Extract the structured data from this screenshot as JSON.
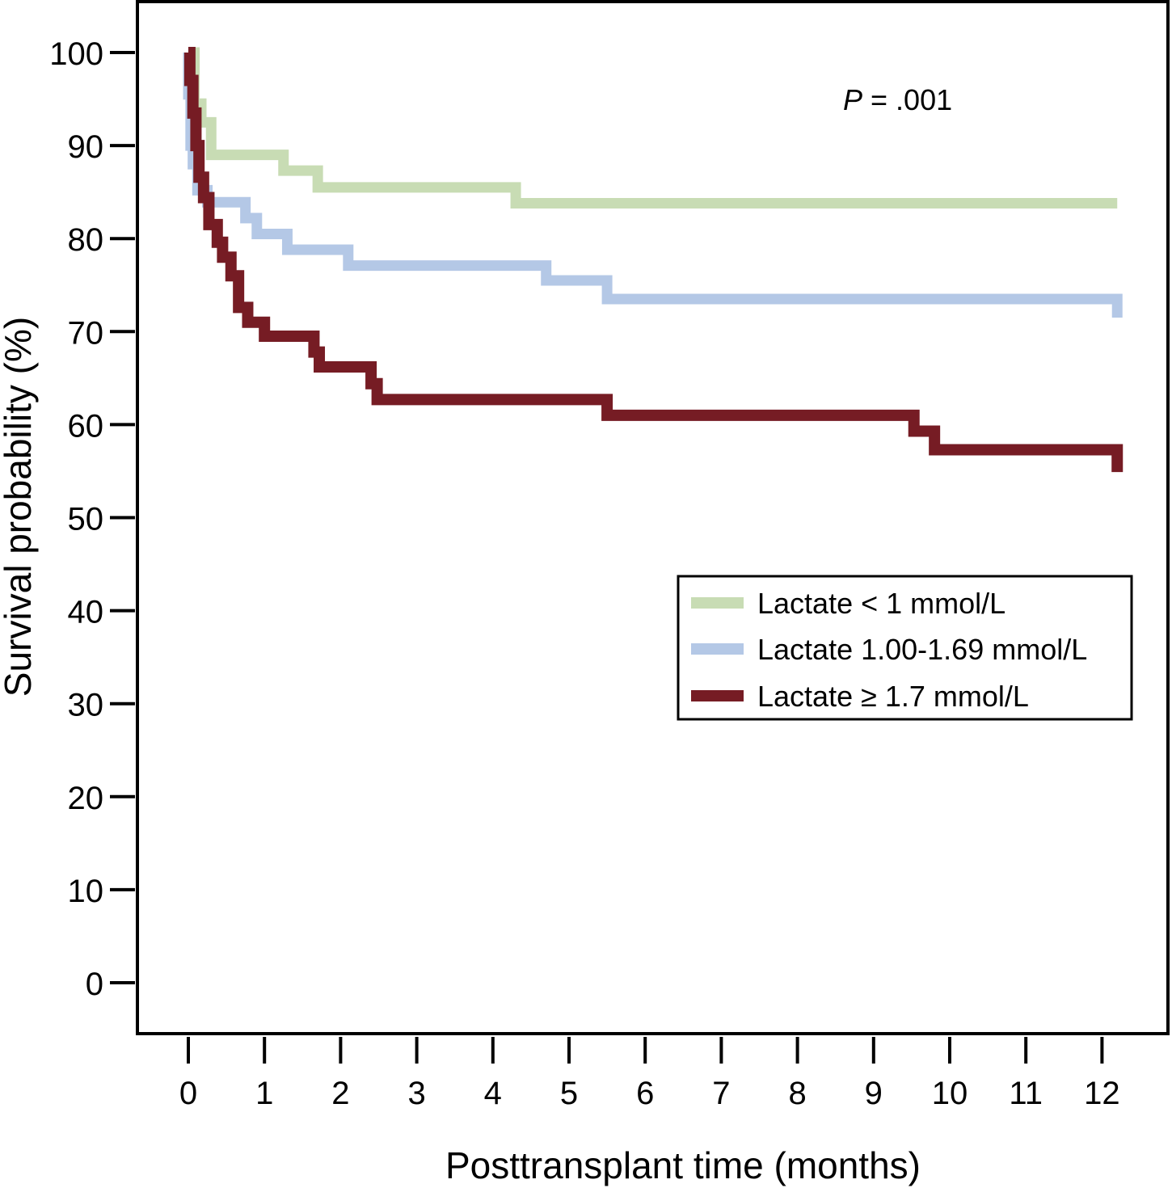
{
  "chart_data": {
    "type": "line",
    "subtype": "kaplan-meier-step",
    "title": "",
    "xlabel": "Posttransplant time (months)",
    "ylabel": "Survival probability (%)",
    "xlim": [
      -0.65,
      12.6
    ],
    "ylim": [
      -5.5,
      105.5
    ],
    "xticks": [
      0,
      1,
      2,
      3,
      4,
      5,
      6,
      7,
      8,
      9,
      10,
      11,
      12
    ],
    "xtick_labels": [
      "0",
      "1",
      "2",
      "3",
      "4",
      "5",
      "6",
      "7",
      "8",
      "9",
      "10",
      "11",
      "12"
    ],
    "yticks": [
      0,
      10,
      20,
      30,
      40,
      50,
      60,
      70,
      80,
      90,
      100
    ],
    "ytick_labels": [
      "0",
      "10",
      "20",
      "30",
      "40",
      "50",
      "60",
      "70",
      "80",
      "90",
      "100"
    ],
    "grid": false,
    "legend_position": "center-right",
    "annotation": {
      "italic": "P",
      "rest": " = .001"
    },
    "series": [
      {
        "name": "Lactate < 1 mmol/L",
        "color": "#c8dcb4",
        "x": [
          0.0,
          0.08,
          0.17,
          0.3,
          1.25,
          1.7,
          4.3,
          12.2
        ],
        "y": [
          100,
          94.5,
          92.5,
          89.0,
          87.3,
          85.5,
          83.8,
          83.8
        ]
      },
      {
        "name": "Lactate 1.00-1.69 mmol/L",
        "color": "#b4c8e6",
        "x": [
          0.0,
          0.0,
          0.03,
          0.06,
          0.12,
          0.25,
          0.75,
          0.9,
          1.3,
          2.1,
          4.7,
          5.5,
          12.2
        ],
        "y": [
          100,
          95.5,
          90.0,
          88.0,
          85.2,
          83.9,
          82.2,
          80.5,
          78.8,
          77.1,
          75.5,
          73.5,
          71.5
        ]
      },
      {
        "name": "Lactate ≥ 1.7 mmol/L",
        "color": "#761c24",
        "x": [
          0.0,
          0.02,
          0.06,
          0.1,
          0.14,
          0.2,
          0.27,
          0.38,
          0.45,
          0.56,
          0.66,
          0.78,
          1.0,
          1.65,
          1.72,
          2.4,
          2.48,
          5.5,
          9.53,
          9.8,
          12.2
        ],
        "y": [
          100,
          97.0,
          93.5,
          90.0,
          86.6,
          84.4,
          81.5,
          79.6,
          78.0,
          76.0,
          72.6,
          71.0,
          69.5,
          67.8,
          66.2,
          64.4,
          62.7,
          61.0,
          59.3,
          57.3,
          54.9
        ]
      }
    ]
  }
}
